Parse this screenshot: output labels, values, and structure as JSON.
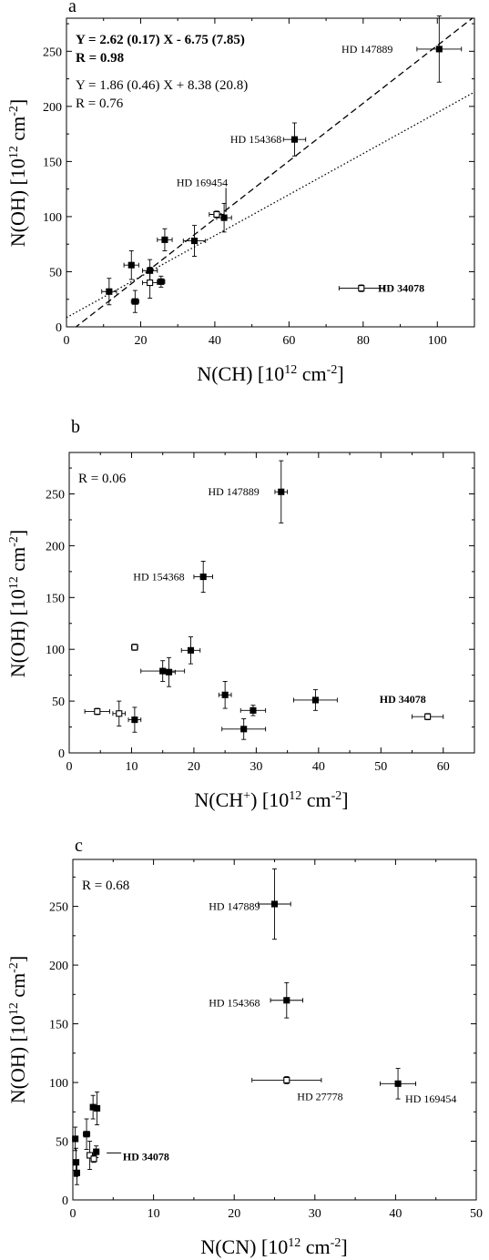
{
  "chart_data": [
    {
      "type": "scatter",
      "panel_label": "a",
      "xlabel": "N(CH) [10^12 cm^-2]",
      "ylabel": "N(OH) [10^12 cm^-2]",
      "xlim": [
        0,
        110
      ],
      "ylim": [
        0,
        280
      ],
      "xticks": [
        0,
        20,
        40,
        60,
        80,
        100
      ],
      "yticks": [
        0,
        50,
        100,
        150,
        200,
        250
      ],
      "equations": [
        {
          "line1": "Y = 2.62 (0.17) X - 6.75 (7.85)",
          "line2": "R = 0.98",
          "bold": true
        },
        {
          "line1": "Y = 1.86 (0.46) X + 8.38 (20.8)",
          "line2": "R = 0.76",
          "bold": false
        }
      ],
      "fits": [
        {
          "style": "dashed",
          "slope": 2.62,
          "intercept": -6.75
        },
        {
          "style": "dotted",
          "slope": 1.86,
          "intercept": 8.38
        }
      ],
      "points": [
        {
          "x": 100.5,
          "y": 252,
          "xerr": 6,
          "yerr": 30,
          "filled": true
        },
        {
          "x": 61.5,
          "y": 170,
          "xerr": 3,
          "yerr": 15,
          "filled": true
        },
        {
          "x": 42.5,
          "y": 99,
          "xerr": 2,
          "yerr": 13,
          "filled": true
        },
        {
          "x": 40.5,
          "y": 102,
          "xerr": 2,
          "yerr": 3,
          "filled": false
        },
        {
          "x": 26.5,
          "y": 79,
          "xerr": 2,
          "yerr": 10,
          "filled": true
        },
        {
          "x": 34.5,
          "y": 78,
          "xerr": 3,
          "yerr": 14,
          "filled": true
        },
        {
          "x": 17.5,
          "y": 56,
          "xerr": 2,
          "yerr": 13,
          "filled": true
        },
        {
          "x": 22.5,
          "y": 51,
          "xerr": 2,
          "yerr": 10,
          "filled": true
        },
        {
          "x": 25.5,
          "y": 41,
          "xerr": 1,
          "yerr": 5,
          "filled": true
        },
        {
          "x": 22.5,
          "y": 40,
          "xerr": 2,
          "yerr": 14,
          "filled": false
        },
        {
          "x": 11.5,
          "y": 32,
          "xerr": 2,
          "yerr": 12,
          "filled": true
        },
        {
          "x": 18.5,
          "y": 23,
          "xerr": 1,
          "yerr": 10,
          "filled": true
        },
        {
          "x": 79.5,
          "y": 35,
          "xerr": 6,
          "yerr": 3,
          "filled": false
        }
      ],
      "annotations": [
        {
          "text": "HD 147889",
          "x": 88,
          "y": 252,
          "bold": false,
          "anchor": "end"
        },
        {
          "text": "HD 154368",
          "x": 58,
          "y": 170,
          "bold": false,
          "anchor": "end"
        },
        {
          "text": "HD 169454",
          "x": 43.5,
          "y": 131,
          "bold": false,
          "anchor": "end",
          "leader": [
            [
              43,
              126
            ],
            [
              43,
              104
            ]
          ]
        },
        {
          "text": "HD 34078",
          "x": 84,
          "y": 35,
          "bold": true,
          "anchor": "start"
        }
      ]
    },
    {
      "type": "scatter",
      "panel_label": "b",
      "xlabel": "N(CH+) [10^12 cm^-2]",
      "ylabel": "N(OH) [10^12 cm^-2]",
      "xlim": [
        0,
        65
      ],
      "ylim": [
        0,
        290
      ],
      "xticks": [
        0,
        10,
        20,
        30,
        40,
        50,
        60
      ],
      "yticks": [
        0,
        50,
        100,
        150,
        200,
        250
      ],
      "r_label": "R = 0.06",
      "points": [
        {
          "x": 34,
          "y": 252,
          "xerr": 1,
          "yerr": 30,
          "filled": true
        },
        {
          "x": 21.5,
          "y": 170,
          "xerr": 1.5,
          "yerr": 15,
          "filled": true
        },
        {
          "x": 10.5,
          "y": 102,
          "xerr": 0.5,
          "yerr": 3,
          "filled": false
        },
        {
          "x": 19.5,
          "y": 99,
          "xerr": 1.5,
          "yerr": 13,
          "filled": true
        },
        {
          "x": 15,
          "y": 79,
          "xerr": 3.5,
          "yerr": 10,
          "filled": true
        },
        {
          "x": 16,
          "y": 78,
          "xerr": 1,
          "yerr": 14,
          "filled": true
        },
        {
          "x": 25,
          "y": 56,
          "xerr": 1,
          "yerr": 13,
          "filled": true
        },
        {
          "x": 39.5,
          "y": 51,
          "xerr": 3.5,
          "yerr": 10,
          "filled": true
        },
        {
          "x": 29.5,
          "y": 41,
          "xerr": 2,
          "yerr": 5,
          "filled": true
        },
        {
          "x": 4.5,
          "y": 40,
          "xerr": 2,
          "yerr": 3,
          "filled": false
        },
        {
          "x": 8,
          "y": 38,
          "xerr": 1,
          "yerr": 12,
          "filled": false
        },
        {
          "x": 10.5,
          "y": 32,
          "xerr": 1,
          "yerr": 12,
          "filled": true
        },
        {
          "x": 28,
          "y": 23,
          "xerr": 3.5,
          "yerr": 10,
          "filled": true
        },
        {
          "x": 57.5,
          "y": 35,
          "xerr": 2.5,
          "yerr": 3,
          "filled": false
        }
      ],
      "annotations": [
        {
          "text": "HD 147889",
          "x": 30.5,
          "y": 252,
          "bold": false,
          "anchor": "end"
        },
        {
          "text": "HD 154368",
          "x": 18.5,
          "y": 170,
          "bold": false,
          "anchor": "end"
        },
        {
          "text": "HD 34078",
          "x": 53.5,
          "y": 52,
          "bold": true,
          "anchor": "middle"
        }
      ]
    },
    {
      "type": "scatter",
      "panel_label": "c",
      "xlabel": "N(CN) [10^12 cm^-2]",
      "ylabel": "N(OH) [10^12 cm^-2]",
      "xlim": [
        0,
        50
      ],
      "ylim": [
        0,
        290
      ],
      "xticks": [
        0,
        10,
        20,
        30,
        40,
        50
      ],
      "yticks": [
        0,
        50,
        100,
        150,
        200,
        250
      ],
      "r_label": "R = 0.68",
      "points": [
        {
          "x": 25,
          "y": 252,
          "xerr": 2,
          "yerr": 30,
          "filled": true
        },
        {
          "x": 26.5,
          "y": 170,
          "xerr": 2,
          "yerr": 15,
          "filled": true
        },
        {
          "x": 26.5,
          "y": 102,
          "xerr": 4.3,
          "yerr": 3,
          "filled": false
        },
        {
          "x": 40.3,
          "y": 99,
          "xerr": 2.2,
          "yerr": 13,
          "filled": true
        },
        {
          "x": 0.3,
          "y": 52,
          "xerr": 0.2,
          "yerr": 10,
          "filled": true
        },
        {
          "x": 0.4,
          "y": 32,
          "xerr": 0.2,
          "yerr": 12,
          "filled": true
        },
        {
          "x": 0.5,
          "y": 23,
          "xerr": 0.2,
          "yerr": 10,
          "filled": true
        },
        {
          "x": 1.7,
          "y": 56,
          "xerr": 0.4,
          "yerr": 13,
          "filled": true
        },
        {
          "x": 2.5,
          "y": 79,
          "xerr": 0.3,
          "yerr": 10,
          "filled": true
        },
        {
          "x": 3,
          "y": 78,
          "xerr": 0.3,
          "yerr": 14,
          "filled": true
        },
        {
          "x": 2.9,
          "y": 41,
          "xerr": 0.3,
          "yerr": 5,
          "filled": true
        },
        {
          "x": 2.1,
          "y": 38,
          "xerr": 0.3,
          "yerr": 12,
          "filled": false
        },
        {
          "x": 2.6,
          "y": 35,
          "xerr": 0.3,
          "yerr": 3,
          "filled": false
        }
      ],
      "annotations": [
        {
          "text": "HD 147889",
          "x": 23.2,
          "y": 250,
          "bold": false,
          "anchor": "end"
        },
        {
          "text": "HD 154368",
          "x": 23.2,
          "y": 168,
          "bold": false,
          "anchor": "end"
        },
        {
          "text": "HD 27778",
          "x": 27.8,
          "y": 88,
          "bold": false,
          "anchor": "start"
        },
        {
          "text": "HD 169454",
          "x": 41.2,
          "y": 86,
          "bold": false,
          "anchor": "start"
        },
        {
          "text": "HD 34078",
          "x": 6.2,
          "y": 37,
          "bold": true,
          "anchor": "start",
          "leader": [
            [
              4.2,
              40
            ],
            [
              6,
              40
            ]
          ]
        }
      ]
    }
  ]
}
